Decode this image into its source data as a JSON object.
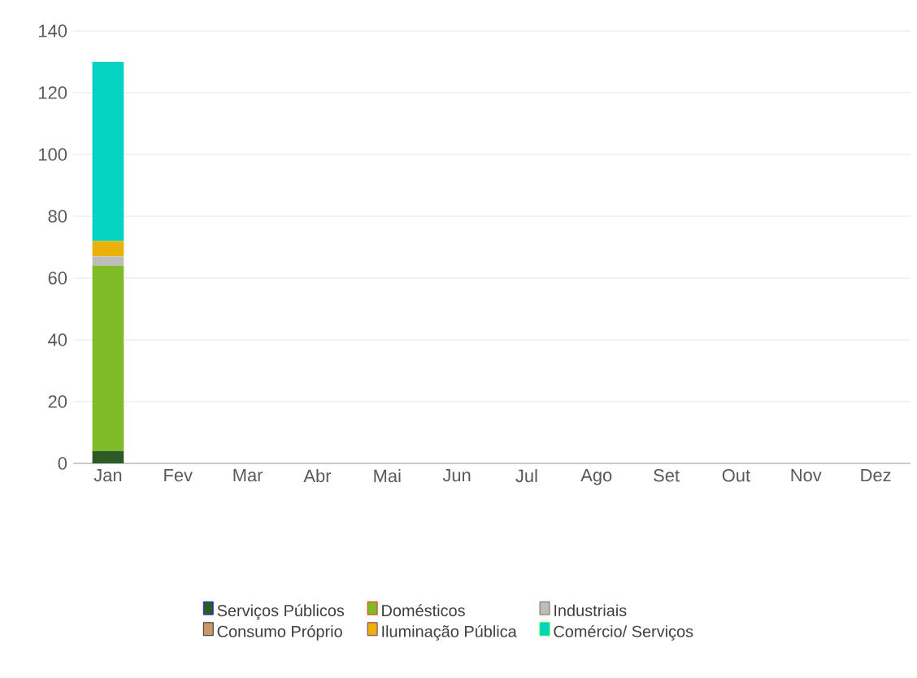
{
  "chart_data": {
    "type": "bar",
    "stacked": true,
    "categories": [
      "Jan",
      "Fev",
      "Mar",
      "Abr",
      "Mai",
      "Jun",
      "Jul",
      "Ago",
      "Set",
      "Out",
      "Nov",
      "Dez"
    ],
    "series": [
      {
        "name": "Serviços Públicos",
        "color": "#2d5a27",
        "values": [
          4,
          null,
          null,
          null,
          null,
          null,
          null,
          null,
          null,
          null,
          null,
          null
        ]
      },
      {
        "name": "Domésticos",
        "color": "#7fba27",
        "values": [
          60,
          null,
          null,
          null,
          null,
          null,
          null,
          null,
          null,
          null,
          null,
          null
        ]
      },
      {
        "name": "Industriais",
        "color": "#bdbdbd",
        "values": [
          3,
          null,
          null,
          null,
          null,
          null,
          null,
          null,
          null,
          null,
          null,
          null
        ]
      },
      {
        "name": "Consumo Próprio",
        "color": "#c49a6c",
        "values": [
          0,
          null,
          null,
          null,
          null,
          null,
          null,
          null,
          null,
          null,
          null,
          null
        ]
      },
      {
        "name": "Iluminação Pública",
        "color": "#e9b10a",
        "values": [
          5,
          null,
          null,
          null,
          null,
          null,
          null,
          null,
          null,
          null,
          null,
          null
        ]
      },
      {
        "name": "Comércio/ Serviços",
        "color": "#05d3c3",
        "values": [
          58,
          null,
          null,
          null,
          null,
          null,
          null,
          null,
          null,
          null,
          null,
          null
        ]
      }
    ],
    "ylim": [
      0,
      140
    ],
    "yticks": [
      0,
      20,
      40,
      60,
      80,
      100,
      120,
      140
    ],
    "grid": "y",
    "legend": "bottom"
  }
}
